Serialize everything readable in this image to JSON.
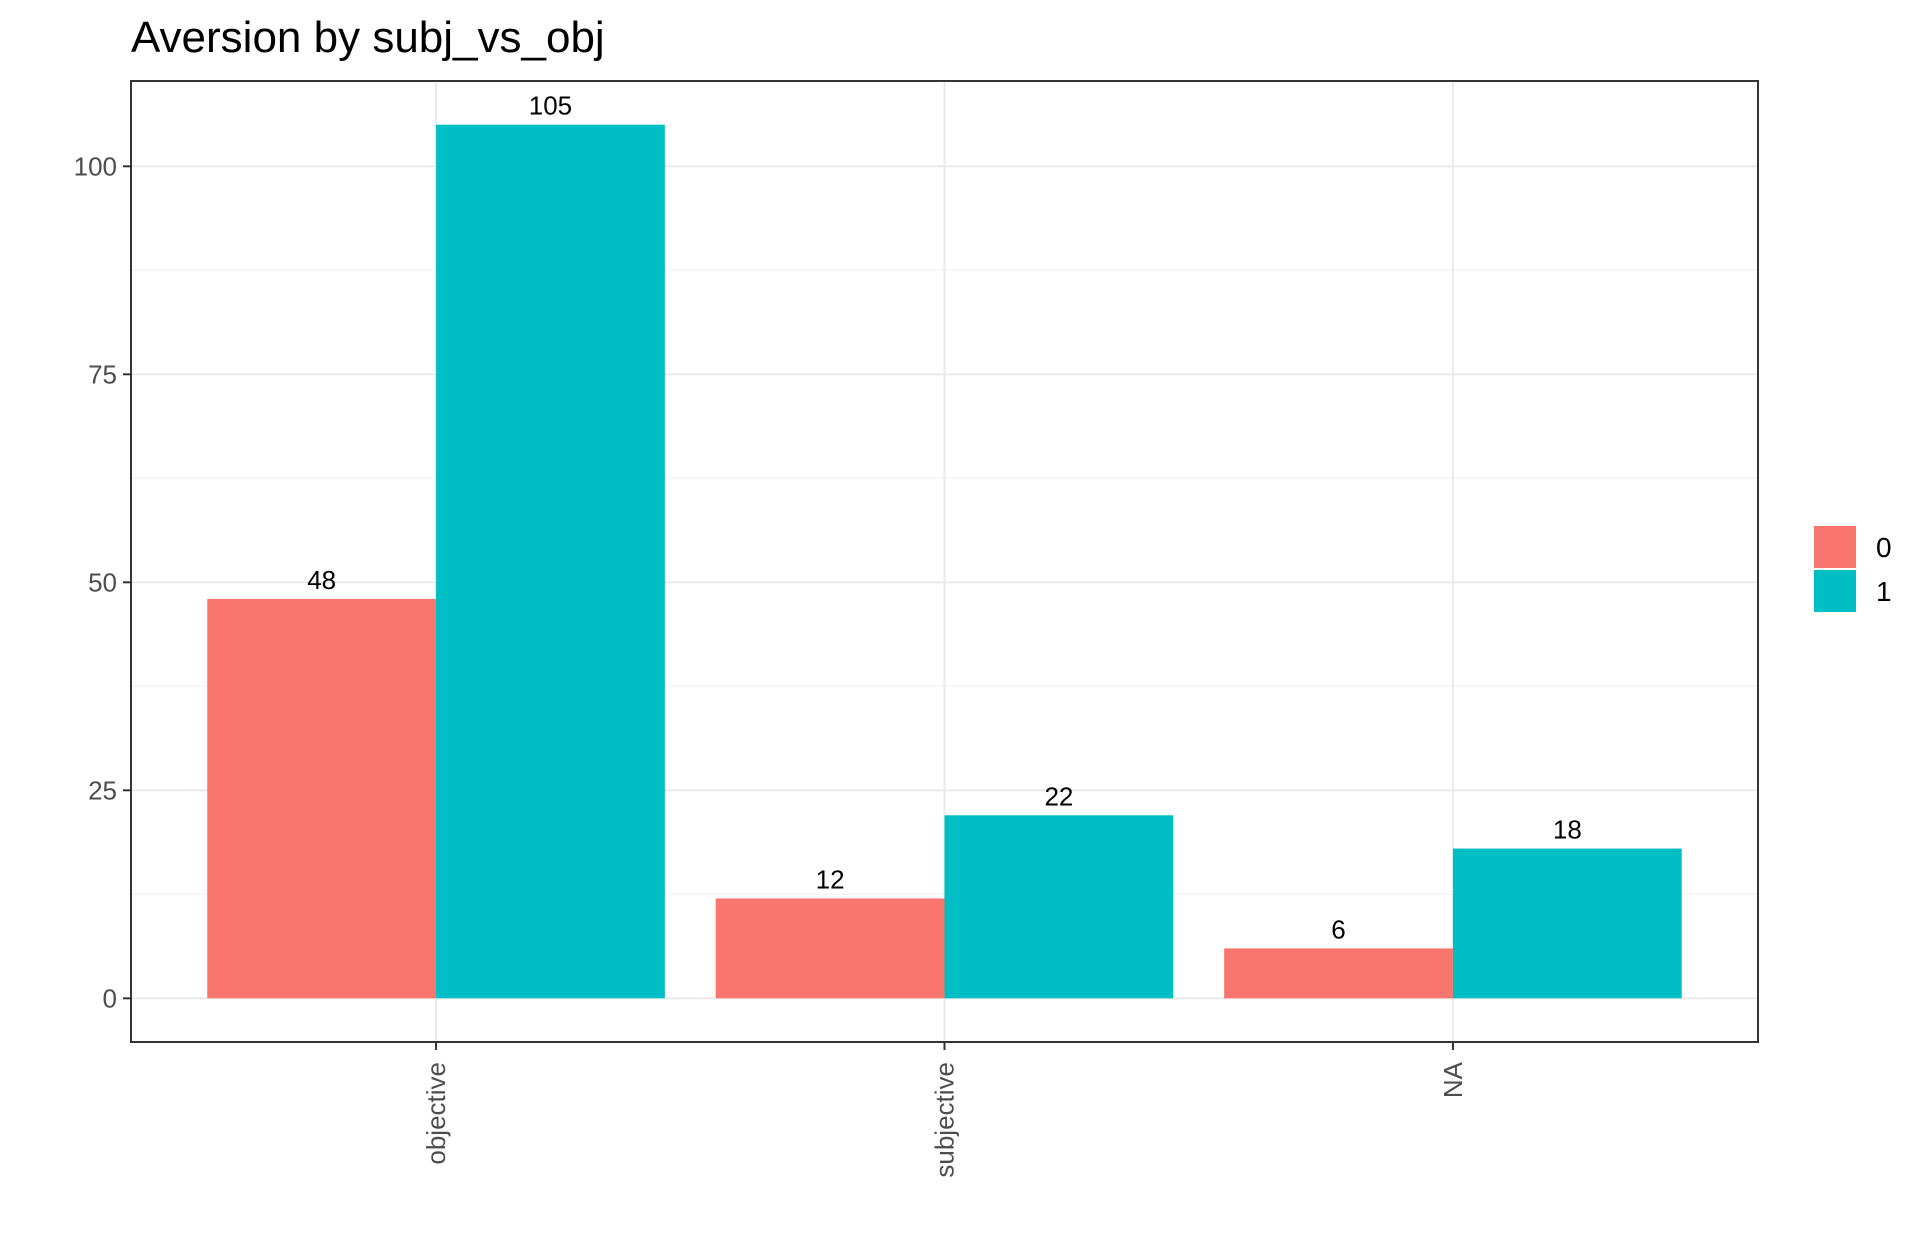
{
  "chart_data": {
    "type": "bar",
    "title": "Aversion by subj_vs_obj",
    "xlabel": "",
    "ylabel": "",
    "categories": [
      "objective",
      "subjective",
      "NA"
    ],
    "series": [
      {
        "name": "0",
        "values": [
          48,
          12,
          6
        ],
        "color": "#F8766D"
      },
      {
        "name": "1",
        "values": [
          105,
          22,
          18
        ],
        "color": "#00BFC4"
      }
    ],
    "ylim": [
      -5.25,
      110.25
    ],
    "yticks": [
      0,
      25,
      50,
      75,
      100
    ],
    "ytick_labels": [
      "0",
      "25",
      "50",
      "75",
      "100"
    ],
    "grid": true,
    "legend_position": "right",
    "x_tick_label_rotation": "vertical"
  }
}
